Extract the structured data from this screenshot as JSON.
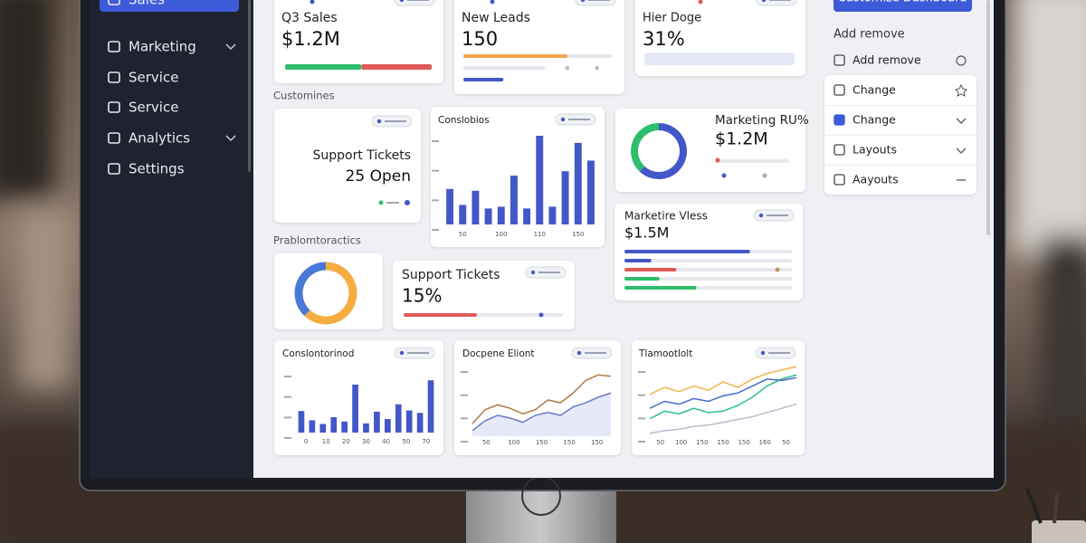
{
  "sidebar": {
    "items": [
      "Sales",
      "Marketing",
      "Service",
      "Service",
      "Analytics",
      "Settings"
    ]
  },
  "button": "Customize Dashboard",
  "panel": {
    "title": "Add remove",
    "items": [
      "Add remove",
      "Change",
      "Change",
      "Layouts",
      "Aayouts"
    ]
  },
  "sections": [
    "Customines",
    "Prablomtoractics"
  ],
  "kpis": [
    {
      "title": "Q3 Sales",
      "value": "$1.2M",
      "bars": [
        {
          "color": "#2ebd6b",
          "values": [
            52
          ]
        },
        {
          "color": "#e05a5a",
          "values": [
            48
          ]
        }
      ]
    },
    {
      "title": "New Leads",
      "value": "150",
      "bars": [
        {
          "color": "#f0a64a",
          "values": [
            70
          ]
        },
        {
          "color": "#4457c8",
          "values": [
            27
          ]
        }
      ]
    },
    {
      "title": "Hier Doge",
      "value": "31%"
    }
  ],
  "cards": {
    "support": {
      "title": "Support Tickets",
      "value": "25 Open"
    },
    "marketing": {
      "title": "Marketing RU%",
      "value": "$1.2M",
      "donut": [
        {
          "color": "#4457c8",
          "value": 62
        },
        {
          "color": "#2ebd6b",
          "value": 38
        }
      ]
    },
    "vless": {
      "title": "Marketire Vless",
      "value": "$1.5M",
      "bars": [
        {
          "color": "#4457c8",
          "value": 75
        },
        {
          "color": "#4457c8",
          "value": 16
        },
        {
          "color": "#e05a5a",
          "value": 31
        },
        {
          "color": "#2ebd6b",
          "value": 21
        },
        {
          "color": "#2ebd6b",
          "value": 43
        }
      ]
    },
    "donut2": {
      "donut": [
        {
          "color": "#f5ad42",
          "value": 62
        },
        {
          "color": "#4a78d8",
          "value": 38
        }
      ]
    },
    "support2": {
      "title": "Support Tickets",
      "value": "15%",
      "bar": {
        "color": "#e05a5a",
        "value": 46
      }
    }
  },
  "charts": [
    {
      "type": "bar",
      "title": "Conslobios",
      "color": "#4457c8",
      "ylim": [
        0,
        100
      ],
      "x_labels": [
        "50",
        "100",
        "110",
        "150"
      ],
      "values": [
        40,
        22,
        38,
        18,
        20,
        55,
        18,
        100,
        20,
        60,
        92,
        72
      ]
    },
    {
      "type": "bar",
      "title": "Conslontorinod",
      "color": "#4457c8",
      "ylim": [
        0,
        100
      ],
      "x_labels": [
        "0",
        "10",
        "20",
        "30",
        "40",
        "50",
        "70"
      ],
      "values": [
        35,
        20,
        14,
        25,
        18,
        78,
        15,
        34,
        22,
        46,
        36,
        32,
        85
      ]
    },
    {
      "type": "line",
      "title": "Docpene Eliont",
      "ylim": [
        0,
        100
      ],
      "x_labels": [
        "50",
        "100",
        "150",
        "150",
        "150"
      ],
      "series": [
        {
          "color": "#b07a45",
          "values": [
            18,
            38,
            45,
            40,
            32,
            38,
            52,
            48,
            62,
            80,
            88,
            86
          ]
        },
        {
          "color": "#6a78c8",
          "values": [
            8,
            22,
            30,
            26,
            20,
            30,
            34,
            30,
            42,
            48,
            56,
            62
          ]
        }
      ]
    },
    {
      "type": "line",
      "title": "Tlamootlolt",
      "ylim": [
        0,
        100
      ],
      "x_labels": [
        "50",
        "100",
        "150",
        "150",
        "150",
        "160",
        "50"
      ],
      "series": [
        {
          "color": "#f0b44a",
          "values": [
            60,
            70,
            64,
            72,
            66,
            78,
            70,
            82,
            90,
            95,
            100
          ]
        },
        {
          "color": "#2ebd8b",
          "values": [
            25,
            36,
            32,
            40,
            34,
            36,
            44,
            56,
            72,
            82,
            88
          ]
        },
        {
          "color": "#4a68c8",
          "values": [
            40,
            50,
            46,
            54,
            50,
            58,
            62,
            72,
            82,
            80,
            84
          ]
        },
        {
          "color": "#b8bccc",
          "values": [
            4,
            8,
            10,
            14,
            16,
            20,
            24,
            28,
            34,
            40,
            46
          ]
        }
      ]
    }
  ]
}
